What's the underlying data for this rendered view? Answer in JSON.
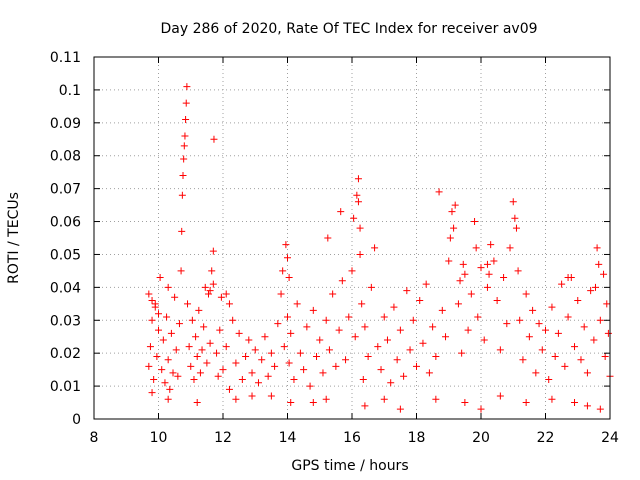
{
  "chart_data": {
    "type": "scatter",
    "title": "Day 286 of 2020, Rate Of TEC Index for receiver av09",
    "xlabel": "GPS time / hours",
    "ylabel": "ROTI / TECUs",
    "xlim": [
      8,
      24
    ],
    "ylim": [
      0,
      0.11
    ],
    "xticks": [
      "8",
      "10",
      "12",
      "14",
      "16",
      "18",
      "20",
      "22",
      "24"
    ],
    "yticks": [
      "0",
      "0.01",
      "0.02",
      "0.03",
      "0.04",
      "0.05",
      "0.06",
      "0.07",
      "0.08",
      "0.09",
      "0.1",
      "0.11"
    ],
    "grid": true,
    "marker": "+",
    "color": "#ff0000",
    "series": [
      {
        "points": [
          [
            9.7,
            0.016
          ],
          [
            9.75,
            0.022
          ],
          [
            9.8,
            0.03
          ],
          [
            9.85,
            0.012
          ],
          [
            9.9,
            0.035
          ],
          [
            9.95,
            0.019
          ],
          [
            10.0,
            0.027
          ],
          [
            10.05,
            0.043
          ],
          [
            10.1,
            0.015
          ],
          [
            10.15,
            0.024
          ],
          [
            10.2,
            0.011
          ],
          [
            10.25,
            0.031
          ],
          [
            10.3,
            0.018
          ],
          [
            10.35,
            0.009
          ],
          [
            10.4,
            0.026
          ],
          [
            10.45,
            0.014
          ],
          [
            10.5,
            0.037
          ],
          [
            10.55,
            0.021
          ],
          [
            10.6,
            0.013
          ],
          [
            10.65,
            0.029
          ],
          [
            10.7,
            0.045
          ],
          [
            10.72,
            0.057
          ],
          [
            10.74,
            0.068
          ],
          [
            10.76,
            0.074
          ],
          [
            10.78,
            0.079
          ],
          [
            10.8,
            0.083
          ],
          [
            10.82,
            0.086
          ],
          [
            10.84,
            0.091
          ],
          [
            10.86,
            0.096
          ],
          [
            10.88,
            0.101
          ],
          [
            10.9,
            0.035
          ],
          [
            10.95,
            0.022
          ],
          [
            11.0,
            0.016
          ],
          [
            11.05,
            0.03
          ],
          [
            11.1,
            0.012
          ],
          [
            11.15,
            0.025
          ],
          [
            11.2,
            0.019
          ],
          [
            11.25,
            0.033
          ],
          [
            11.3,
            0.014
          ],
          [
            11.35,
            0.021
          ],
          [
            11.4,
            0.028
          ],
          [
            11.45,
            0.04
          ],
          [
            11.5,
            0.017
          ],
          [
            11.55,
            0.038
          ],
          [
            11.6,
            0.023
          ],
          [
            11.65,
            0.045
          ],
          [
            11.7,
            0.051
          ],
          [
            11.72,
            0.085
          ],
          [
            11.8,
            0.02
          ],
          [
            11.85,
            0.013
          ],
          [
            11.9,
            0.027
          ],
          [
            11.95,
            0.037
          ],
          [
            12.0,
            0.015
          ],
          [
            12.1,
            0.022
          ],
          [
            12.2,
            0.009
          ],
          [
            12.3,
            0.03
          ],
          [
            12.4,
            0.017
          ],
          [
            12.5,
            0.026
          ],
          [
            12.6,
            0.012
          ],
          [
            12.7,
            0.019
          ],
          [
            12.8,
            0.024
          ],
          [
            12.9,
            0.014
          ],
          [
            13.0,
            0.021
          ],
          [
            13.1,
            0.011
          ],
          [
            13.2,
            0.018
          ],
          [
            13.3,
            0.025
          ],
          [
            13.4,
            0.013
          ],
          [
            13.5,
            0.02
          ],
          [
            13.6,
            0.016
          ],
          [
            13.7,
            0.029
          ],
          [
            13.8,
            0.038
          ],
          [
            13.85,
            0.045
          ],
          [
            13.9,
            0.022
          ],
          [
            13.95,
            0.053
          ],
          [
            14.0,
            0.031
          ],
          [
            14.05,
            0.017
          ],
          [
            14.1,
            0.026
          ],
          [
            14.2,
            0.012
          ],
          [
            14.3,
            0.035
          ],
          [
            14.4,
            0.02
          ],
          [
            14.5,
            0.015
          ],
          [
            14.6,
            0.028
          ],
          [
            14.7,
            0.01
          ],
          [
            14.8,
            0.033
          ],
          [
            14.9,
            0.019
          ],
          [
            15.0,
            0.024
          ],
          [
            15.1,
            0.014
          ],
          [
            15.2,
            0.03
          ],
          [
            15.25,
            0.055
          ],
          [
            15.3,
            0.021
          ],
          [
            15.4,
            0.038
          ],
          [
            15.5,
            0.016
          ],
          [
            15.6,
            0.027
          ],
          [
            15.65,
            0.063
          ],
          [
            15.7,
            0.042
          ],
          [
            15.8,
            0.018
          ],
          [
            15.9,
            0.031
          ],
          [
            16.0,
            0.045
          ],
          [
            16.05,
            0.061
          ],
          [
            16.1,
            0.025
          ],
          [
            16.15,
            0.068
          ],
          [
            16.2,
            0.073
          ],
          [
            16.25,
            0.05
          ],
          [
            16.3,
            0.035
          ],
          [
            16.35,
            0.012
          ],
          [
            16.4,
            0.028
          ],
          [
            16.5,
            0.019
          ],
          [
            16.6,
            0.04
          ],
          [
            16.7,
            0.052
          ],
          [
            16.8,
            0.022
          ],
          [
            16.9,
            0.015
          ],
          [
            17.0,
            0.031
          ],
          [
            17.1,
            0.024
          ],
          [
            17.2,
            0.011
          ],
          [
            17.3,
            0.034
          ],
          [
            17.4,
            0.018
          ],
          [
            17.5,
            0.027
          ],
          [
            17.6,
            0.013
          ],
          [
            17.7,
            0.039
          ],
          [
            17.8,
            0.021
          ],
          [
            17.9,
            0.03
          ],
          [
            18.0,
            0.016
          ],
          [
            18.1,
            0.036
          ],
          [
            18.2,
            0.023
          ],
          [
            18.3,
            0.041
          ],
          [
            18.4,
            0.014
          ],
          [
            18.5,
            0.028
          ],
          [
            18.6,
            0.019
          ],
          [
            18.7,
            0.069
          ],
          [
            18.8,
            0.033
          ],
          [
            18.9,
            0.025
          ],
          [
            19.0,
            0.048
          ],
          [
            19.05,
            0.055
          ],
          [
            19.1,
            0.063
          ],
          [
            19.15,
            0.058
          ],
          [
            19.2,
            0.065
          ],
          [
            19.3,
            0.035
          ],
          [
            19.4,
            0.02
          ],
          [
            19.5,
            0.044
          ],
          [
            19.6,
            0.027
          ],
          [
            19.7,
            0.038
          ],
          [
            19.8,
            0.06
          ],
          [
            19.85,
            0.052
          ],
          [
            19.9,
            0.031
          ],
          [
            20.0,
            0.046
          ],
          [
            20.1,
            0.024
          ],
          [
            20.2,
            0.04
          ],
          [
            20.3,
            0.053
          ],
          [
            20.4,
            0.048
          ],
          [
            20.5,
            0.036
          ],
          [
            20.6,
            0.021
          ],
          [
            20.7,
            0.043
          ],
          [
            20.8,
            0.029
          ],
          [
            20.9,
            0.052
          ],
          [
            21.0,
            0.066
          ],
          [
            21.05,
            0.061
          ],
          [
            21.1,
            0.058
          ],
          [
            21.15,
            0.045
          ],
          [
            21.2,
            0.03
          ],
          [
            21.3,
            0.018
          ],
          [
            21.4,
            0.038
          ],
          [
            21.5,
            0.025
          ],
          [
            21.6,
            0.033
          ],
          [
            21.7,
            0.014
          ],
          [
            21.8,
            0.029
          ],
          [
            21.9,
            0.021
          ],
          [
            22.0,
            0.027
          ],
          [
            22.1,
            0.012
          ],
          [
            22.2,
            0.034
          ],
          [
            22.3,
            0.019
          ],
          [
            22.4,
            0.026
          ],
          [
            22.5,
            0.041
          ],
          [
            22.6,
            0.016
          ],
          [
            22.7,
            0.031
          ],
          [
            22.8,
            0.043
          ],
          [
            22.9,
            0.022
          ],
          [
            23.0,
            0.036
          ],
          [
            23.1,
            0.018
          ],
          [
            23.2,
            0.028
          ],
          [
            23.3,
            0.014
          ],
          [
            23.4,
            0.039
          ],
          [
            23.5,
            0.024
          ],
          [
            23.6,
            0.052
          ],
          [
            23.65,
            0.047
          ],
          [
            23.7,
            0.03
          ],
          [
            23.8,
            0.044
          ],
          [
            23.85,
            0.019
          ],
          [
            23.9,
            0.035
          ],
          [
            23.95,
            0.026
          ],
          [
            24.0,
            0.013
          ],
          [
            10.3,
            0.006
          ],
          [
            11.2,
            0.005
          ],
          [
            12.4,
            0.006
          ],
          [
            13.5,
            0.007
          ],
          [
            14.1,
            0.005
          ],
          [
            15.2,
            0.006
          ],
          [
            16.4,
            0.004
          ],
          [
            17.5,
            0.003
          ],
          [
            18.6,
            0.006
          ],
          [
            19.5,
            0.005
          ],
          [
            20.0,
            0.003
          ],
          [
            21.4,
            0.005
          ],
          [
            22.2,
            0.006
          ],
          [
            23.3,
            0.004
          ],
          [
            23.7,
            0.003
          ],
          [
            9.8,
            0.008
          ],
          [
            12.9,
            0.007
          ],
          [
            14.8,
            0.005
          ],
          [
            17.0,
            0.006
          ],
          [
            20.6,
            0.007
          ],
          [
            22.9,
            0.005
          ],
          [
            9.7,
            0.038
          ],
          [
            9.8,
            0.036
          ],
          [
            9.9,
            0.034
          ],
          [
            10.0,
            0.032
          ],
          [
            10.3,
            0.04
          ],
          [
            11.6,
            0.039
          ],
          [
            11.7,
            0.041
          ],
          [
            12.1,
            0.038
          ],
          [
            12.2,
            0.035
          ],
          [
            14.0,
            0.049
          ],
          [
            14.05,
            0.043
          ],
          [
            16.2,
            0.066
          ],
          [
            16.25,
            0.058
          ],
          [
            19.35,
            0.042
          ],
          [
            19.45,
            0.047
          ],
          [
            20.2,
            0.047
          ],
          [
            20.25,
            0.044
          ],
          [
            22.7,
            0.043
          ],
          [
            23.55,
            0.04
          ]
        ]
      }
    ]
  }
}
